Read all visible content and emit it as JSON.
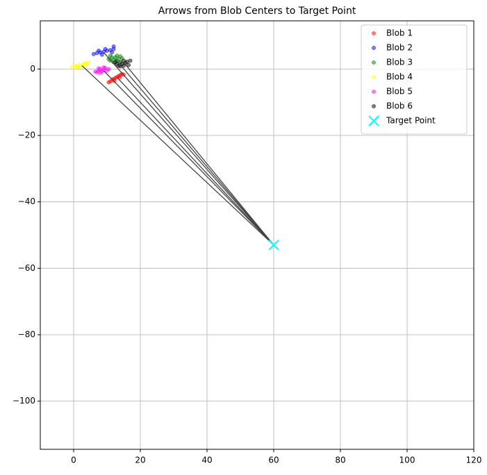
{
  "chart_data": {
    "type": "scatter",
    "title": "Arrows from Blob Centers to Target Point",
    "xlim": [
      -10,
      120
    ],
    "ylim": [
      -114.5,
      14.5
    ],
    "xticks": [
      0,
      20,
      40,
      60,
      80,
      100,
      120
    ],
    "yticks": [
      {
        "value": -100,
        "label": "−100"
      },
      {
        "value": -80,
        "label": "−80"
      },
      {
        "value": -60,
        "label": "−60"
      },
      {
        "value": -40,
        "label": "−40"
      },
      {
        "value": -20,
        "label": "−20"
      },
      0
    ],
    "grid": true,
    "legend": "upper right",
    "series": [
      {
        "name": "Blob 1",
        "color": "#ff0000",
        "x": [
          11,
          11.5,
          12,
          12.5,
          13,
          13.5,
          14,
          14.5,
          12.2,
          13.8,
          10.5,
          15
        ],
        "y": [
          -3.8,
          -3.2,
          -3,
          -2.7,
          -2.4,
          -2.1,
          -1.8,
          -1.5,
          -3.6,
          -2.6,
          -4,
          -1.7
        ]
      },
      {
        "name": "Blob 2",
        "color": "#0000ff",
        "x": [
          6,
          7,
          8,
          9,
          10,
          11,
          12,
          8.5,
          9.5,
          7.5,
          11.5,
          12
        ],
        "y": [
          4.5,
          4.8,
          5,
          5.2,
          5.5,
          5.7,
          6,
          4.3,
          6,
          5.5,
          5,
          6.8
        ]
      },
      {
        "name": "Blob 3",
        "color": "#008000",
        "x": [
          10.5,
          11,
          11.5,
          12,
          12.5,
          13,
          13.5,
          14,
          12,
          13,
          14.5,
          11
        ],
        "y": [
          3,
          2.5,
          3.5,
          2.8,
          3.5,
          4,
          3,
          3.8,
          2,
          2.5,
          3.2,
          4
        ]
      },
      {
        "name": "Blob 4",
        "color": "#ffff00",
        "x": [
          -0.5,
          0.5,
          1,
          1.5,
          2,
          2.5,
          3,
          3.5,
          4,
          4.5,
          1,
          3.5
        ],
        "y": [
          0.5,
          0.7,
          1,
          0.6,
          1.2,
          0.8,
          1.4,
          1,
          1.6,
          2,
          0.3,
          1.8
        ]
      },
      {
        "name": "Blob 5",
        "color": "#ff00ff",
        "x": [
          6.5,
          7,
          7.5,
          8,
          8.5,
          9,
          9.5,
          10,
          10.5,
          8,
          9,
          7.5
        ],
        "y": [
          -0.8,
          -1,
          -0.5,
          0,
          -0.7,
          -0.3,
          0.3,
          -0.5,
          0,
          -1.2,
          0.5,
          0.2
        ]
      },
      {
        "name": "Blob 6",
        "color": "#000000",
        "x": [
          13,
          13.5,
          14,
          14.5,
          15,
          15.5,
          16,
          16.5,
          17,
          14,
          15,
          12.5
        ],
        "y": [
          1.5,
          1,
          2,
          1.5,
          2.5,
          1.8,
          2.2,
          1.2,
          2.5,
          0.8,
          1,
          2
        ]
      },
      {
        "name": "Target Point",
        "color": "#00ffff",
        "marker": "x",
        "x": [
          60
        ],
        "y": [
          -53
        ]
      }
    ],
    "arrows": [
      {
        "x": 13,
        "y": -2.5
      },
      {
        "x": 9,
        "y": 5
      },
      {
        "x": 12.5,
        "y": 3
      },
      {
        "x": 2.5,
        "y": 1
      },
      {
        "x": 9,
        "y": -0.5
      },
      {
        "x": 15,
        "y": 2
      }
    ],
    "arrow_color": "#444444"
  }
}
